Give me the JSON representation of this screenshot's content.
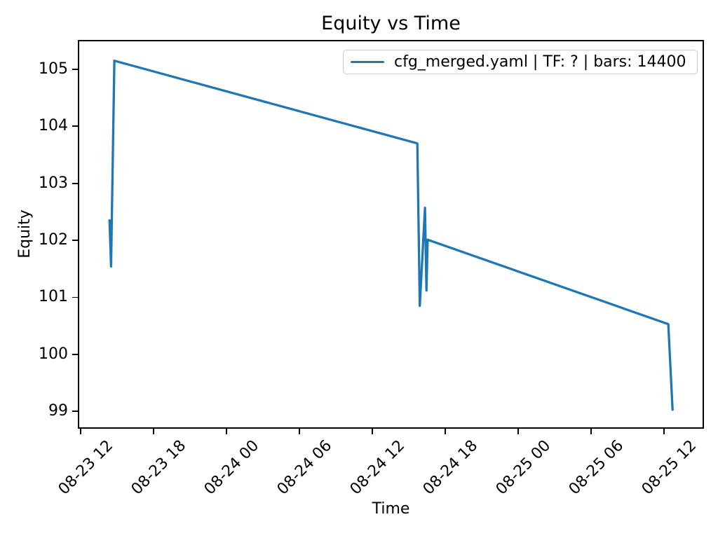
{
  "chart_data": {
    "type": "line",
    "title": "Equity vs Time",
    "xlabel": "Time",
    "ylabel": "Equity",
    "grid": false,
    "legend_position": "upper right",
    "line_color": "#1f77b4",
    "background_color": "#ffffff",
    "series": [
      {
        "name": "cfg_merged.yaml | TF: ? | bars: 14400",
        "color": "#1f77b4",
        "points": [
          {
            "time": "08-23 14:22",
            "hours": 2.37,
            "equity": 102.35
          },
          {
            "time": "08-23 14:30",
            "hours": 2.5,
            "equity": 101.54
          },
          {
            "time": "08-23 14:46",
            "hours": 2.77,
            "equity": 105.15
          },
          {
            "time": "08-24 15:42",
            "hours": 27.7,
            "equity": 103.7
          },
          {
            "time": "08-24 15:54",
            "hours": 27.9,
            "equity": 100.85
          },
          {
            "time": "08-24 16:20",
            "hours": 28.33,
            "equity": 102.57
          },
          {
            "time": "08-24 16:27",
            "hours": 28.45,
            "equity": 101.12
          },
          {
            "time": "08-24 16:33",
            "hours": 28.55,
            "equity": 102.01
          },
          {
            "time": "08-25 12:21",
            "hours": 48.35,
            "equity": 100.53
          },
          {
            "time": "08-25 12:42",
            "hours": 48.7,
            "equity": 99.03
          }
        ]
      }
    ],
    "x_axis": {
      "tick_labels": [
        "08-23 12",
        "08-23 18",
        "08-24 00",
        "08-24 06",
        "08-24 12",
        "08-24 18",
        "08-25 00",
        "08-25 06",
        "08-25 12"
      ],
      "tick_hours": [
        0,
        6,
        12,
        18,
        24,
        30,
        36,
        42,
        48
      ],
      "range_hours": [
        -0.12,
        51.17
      ],
      "label_rotation_deg": 45
    },
    "y_axis": {
      "tick_labels": [
        "99",
        "100",
        "101",
        "102",
        "103",
        "104",
        "105"
      ],
      "ticks": [
        99,
        100,
        101,
        102,
        103,
        104,
        105
      ],
      "range": [
        98.72,
        105.49
      ]
    }
  }
}
